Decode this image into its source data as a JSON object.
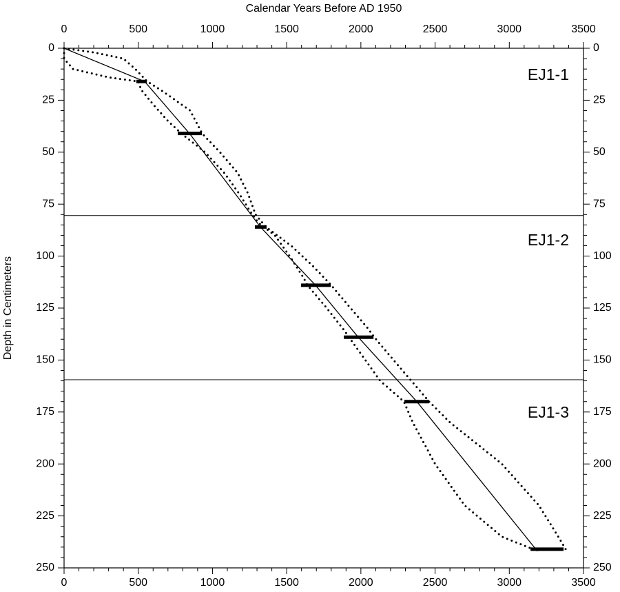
{
  "chart_data": {
    "type": "line",
    "title": "Calendar Years Before AD 1950",
    "ylabel": "Depth in Centimeters",
    "xlim": [
      0,
      3500
    ],
    "xticks": [
      0,
      500,
      1000,
      1500,
      2000,
      2500,
      3000,
      3500
    ],
    "ylim": [
      0,
      250
    ],
    "yticks": [
      0,
      25,
      50,
      75,
      100,
      125,
      150,
      175,
      200,
      225,
      250
    ],
    "y_inverted": true,
    "color": "#000000",
    "series": [
      {
        "style": "solid",
        "age": [
          0,
          543,
          845,
          1323,
          1694,
          1982,
          2377,
          3190
        ],
        "depth": [
          0,
          16,
          41,
          86,
          114,
          139,
          170,
          242
        ]
      },
      {
        "style": "dotted",
        "age": [
          0,
          0,
          60,
          300,
          500,
          520,
          600,
          700,
          790,
          950,
          1080,
          1180,
          1250,
          1310,
          1420,
          1520,
          1610,
          1640,
          1770,
          1880,
          1920,
          2030,
          2130,
          2290,
          2350,
          2500,
          2700,
          2950,
          3160
        ],
        "depth": [
          0,
          5,
          10,
          14,
          16,
          20,
          27,
          35,
          41,
          50,
          60,
          70,
          78,
          84,
          90,
          100,
          110,
          114,
          125,
          135,
          139,
          150,
          160,
          170,
          180,
          200,
          220,
          235,
          241
        ]
      },
      {
        "style": "dotted",
        "age": [
          0,
          200,
          400,
          480,
          560,
          650,
          850,
          930,
          1050,
          1170,
          1240,
          1290,
          1360,
          1530,
          1680,
          1800,
          1930,
          2050,
          2090,
          2220,
          2340,
          2460,
          2600,
          2950,
          3200,
          3330,
          3380
        ],
        "depth": [
          0,
          2,
          5,
          10,
          16,
          20,
          30,
          41,
          50,
          60,
          70,
          80,
          86,
          95,
          105,
          114,
          125,
          135,
          139,
          150,
          160,
          170,
          180,
          200,
          220,
          235,
          241
        ]
      }
    ],
    "dates": {
      "depth": [
        16,
        41,
        86,
        114,
        139,
        170,
        241
      ],
      "min_age": [
        487,
        766,
        1286,
        1597,
        1885,
        2293,
        3143
      ],
      "max_age": [
        557,
        929,
        1365,
        1797,
        2085,
        2460,
        3366
      ]
    },
    "zone_boundaries": [
      80.5,
      159.5
    ],
    "zone_labels": [
      "EJ1-1",
      "EJ1-2",
      "EJ1-3"
    ]
  }
}
